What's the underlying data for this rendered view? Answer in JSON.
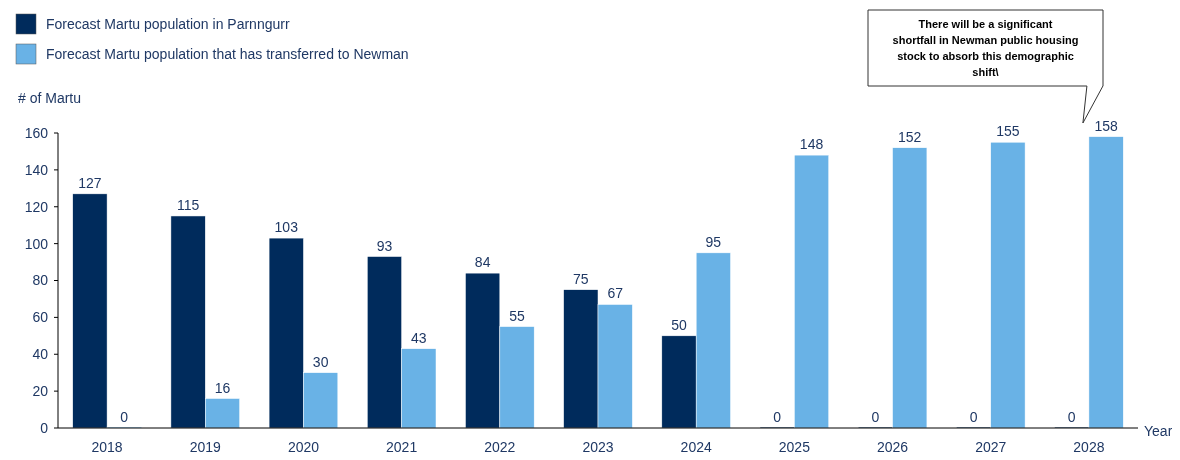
{
  "chart_data": {
    "type": "bar",
    "categories": [
      "2018",
      "2019",
      "2020",
      "2021",
      "2022",
      "2023",
      "2024",
      "2025",
      "2026",
      "2027",
      "2028"
    ],
    "series": [
      {
        "name": "Forecast Martu population in Parnngurr",
        "color": "#002b5c",
        "values": [
          127,
          115,
          103,
          93,
          84,
          75,
          50,
          0,
          0,
          0,
          0
        ]
      },
      {
        "name": "Forecast Martu population that has transferred to Newman",
        "color": "#69b2e6",
        "values": [
          0,
          16,
          30,
          43,
          55,
          67,
          95,
          148,
          152,
          155,
          158
        ]
      }
    ],
    "ylabel": "# of Martu",
    "xlabel": "Year",
    "ylim": [
      0,
      160
    ],
    "yticks": [
      0,
      20,
      40,
      60,
      80,
      100,
      120,
      140,
      160
    ],
    "data_labels": true,
    "legend": "top left",
    "grid": false,
    "annotations": [
      "There will be a significant shortfall in Newman public housing stock to absorb this demographic shift\\"
    ]
  }
}
